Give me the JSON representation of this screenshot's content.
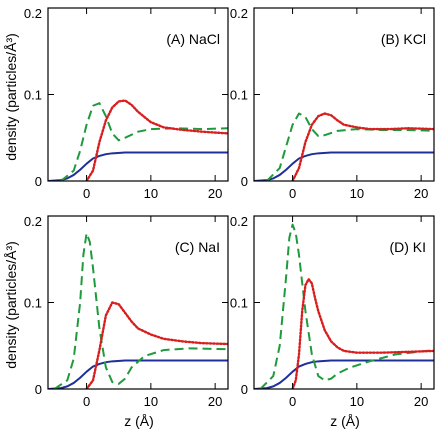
{
  "figure": {
    "ylabel": "density (particles/Å³)",
    "xlabel": "z (Å)"
  },
  "colors": {
    "water": "#1f2f9a",
    "cation": "#1f9a3c",
    "anion": "#d81e1e"
  },
  "chart_data": [
    {
      "type": "line",
      "panel_label": "(A) NaCl",
      "xlim": [
        -6,
        22
      ],
      "ylim": [
        0,
        0.2
      ],
      "xticks": [
        0,
        10,
        20
      ],
      "yticks": [
        0,
        0.1,
        0.2
      ],
      "ytick_labels": [
        "0",
        "0.1",
        "0.2"
      ],
      "series": [
        {
          "style": "solid",
          "color_key": "water",
          "x": [
            -6,
            -4,
            -3,
            -2,
            -1,
            0,
            1,
            2,
            3,
            4,
            6,
            8,
            10,
            22
          ],
          "y": [
            0,
            0.001,
            0.003,
            0.007,
            0.013,
            0.02,
            0.026,
            0.029,
            0.031,
            0.032,
            0.033,
            0.033,
            0.033,
            0.033
          ]
        },
        {
          "style": "dashed",
          "color_key": "cation",
          "x": [
            -4,
            -2,
            -1,
            0,
            1,
            2,
            3,
            4,
            5,
            6,
            8,
            10,
            14,
            18,
            22
          ],
          "y": [
            0,
            0.012,
            0.035,
            0.065,
            0.087,
            0.09,
            0.075,
            0.055,
            0.047,
            0.05,
            0.057,
            0.06,
            0.061,
            0.06,
            0.061
          ]
        },
        {
          "style": "dotted",
          "color_key": "anion",
          "x": [
            0,
            1,
            2,
            3,
            4,
            5,
            6,
            7,
            8,
            10,
            12,
            15,
            18,
            22
          ],
          "y": [
            0,
            0.012,
            0.045,
            0.07,
            0.085,
            0.092,
            0.093,
            0.088,
            0.08,
            0.068,
            0.062,
            0.059,
            0.057,
            0.055
          ]
        }
      ]
    },
    {
      "type": "line",
      "panel_label": "(B) KCl",
      "xlim": [
        -6,
        22
      ],
      "ylim": [
        0,
        0.2
      ],
      "xticks": [
        0,
        10,
        20
      ],
      "yticks": [
        0,
        0.1,
        0.2
      ],
      "ytick_labels": [
        "0",
        "0.1",
        "0.2"
      ],
      "series": [
        {
          "style": "solid",
          "color_key": "water",
          "x": [
            -6,
            -4,
            -3,
            -2,
            -1,
            0,
            1,
            2,
            3,
            4,
            6,
            8,
            10,
            22
          ],
          "y": [
            0,
            0.001,
            0.003,
            0.007,
            0.013,
            0.02,
            0.026,
            0.029,
            0.031,
            0.032,
            0.033,
            0.033,
            0.033,
            0.033
          ]
        },
        {
          "style": "dashed",
          "color_key": "cation",
          "x": [
            -4,
            -2,
            -1,
            0,
            1,
            2,
            3,
            4,
            5,
            7,
            10,
            14,
            18,
            22
          ],
          "y": [
            0,
            0.015,
            0.04,
            0.065,
            0.078,
            0.074,
            0.06,
            0.052,
            0.053,
            0.058,
            0.06,
            0.059,
            0.059,
            0.058
          ]
        },
        {
          "style": "dotted",
          "color_key": "anion",
          "x": [
            0,
            1,
            2,
            3,
            4,
            5,
            6,
            7,
            8,
            10,
            12,
            15,
            18,
            22
          ],
          "y": [
            0,
            0.015,
            0.045,
            0.065,
            0.075,
            0.078,
            0.076,
            0.07,
            0.065,
            0.062,
            0.06,
            0.06,
            0.061,
            0.06
          ]
        }
      ]
    },
    {
      "type": "line",
      "panel_label": "(C) NaI",
      "xlim": [
        -6,
        22
      ],
      "ylim": [
        0,
        0.2
      ],
      "xticks": [
        0,
        10,
        20
      ],
      "yticks": [
        0,
        0.1,
        0.2
      ],
      "ytick_labels": [
        "0",
        "0.1",
        "0.2"
      ],
      "series": [
        {
          "style": "solid",
          "color_key": "water",
          "x": [
            -6,
            -4,
            -3,
            -2,
            -1,
            0,
            1,
            2,
            3,
            4,
            6,
            8,
            10,
            22
          ],
          "y": [
            0,
            0.001,
            0.003,
            0.007,
            0.013,
            0.02,
            0.026,
            0.029,
            0.031,
            0.032,
            0.033,
            0.033,
            0.033,
            0.033
          ]
        },
        {
          "style": "dashed",
          "color_key": "cation",
          "x": [
            -5,
            -3,
            -2,
            -1,
            -0.5,
            0,
            0.5,
            1,
            2,
            3,
            4,
            5,
            6,
            7,
            9,
            12,
            16,
            22
          ],
          "y": [
            0,
            0.01,
            0.035,
            0.1,
            0.155,
            0.18,
            0.17,
            0.14,
            0.07,
            0.025,
            0.008,
            0.006,
            0.012,
            0.025,
            0.038,
            0.045,
            0.047,
            0.046
          ]
        },
        {
          "style": "dotted",
          "color_key": "anion",
          "x": [
            0,
            1,
            2,
            3,
            4,
            5,
            6,
            7,
            8,
            10,
            12,
            15,
            18,
            22
          ],
          "y": [
            0,
            0.01,
            0.045,
            0.085,
            0.1,
            0.098,
            0.088,
            0.078,
            0.07,
            0.063,
            0.058,
            0.055,
            0.053,
            0.052
          ]
        }
      ]
    },
    {
      "type": "line",
      "panel_label": "(D) KI",
      "xlim": [
        -6,
        22
      ],
      "ylim": [
        0,
        0.2
      ],
      "xticks": [
        0,
        10,
        20
      ],
      "yticks": [
        0,
        0.1,
        0.2
      ],
      "ytick_labels": [
        "0",
        "0.1",
        "0.2"
      ],
      "series": [
        {
          "style": "solid",
          "color_key": "water",
          "x": [
            -6,
            -4,
            -3,
            -2,
            -1,
            0,
            1,
            2,
            3,
            4,
            6,
            8,
            10,
            22
          ],
          "y": [
            0,
            0.001,
            0.003,
            0.007,
            0.013,
            0.02,
            0.026,
            0.029,
            0.031,
            0.032,
            0.033,
            0.033,
            0.033,
            0.033
          ]
        },
        {
          "style": "dashed",
          "color_key": "cation",
          "x": [
            -5,
            -3,
            -2,
            -1,
            -0.5,
            0,
            0.5,
            1,
            2,
            3,
            4,
            5,
            6,
            7,
            9,
            12,
            16,
            22
          ],
          "y": [
            0,
            0.015,
            0.05,
            0.13,
            0.175,
            0.19,
            0.18,
            0.155,
            0.09,
            0.04,
            0.015,
            0.01,
            0.012,
            0.018,
            0.025,
            0.032,
            0.04,
            0.045
          ]
        },
        {
          "style": "dotted",
          "color_key": "anion",
          "x": [
            0,
            0.5,
            1,
            1.5,
            2,
            2.5,
            3,
            3.5,
            4,
            5,
            6,
            7,
            8,
            10,
            14,
            18,
            22
          ],
          "y": [
            0,
            0.01,
            0.04,
            0.09,
            0.12,
            0.127,
            0.122,
            0.105,
            0.09,
            0.068,
            0.055,
            0.048,
            0.044,
            0.042,
            0.042,
            0.043,
            0.044
          ]
        }
      ]
    }
  ]
}
